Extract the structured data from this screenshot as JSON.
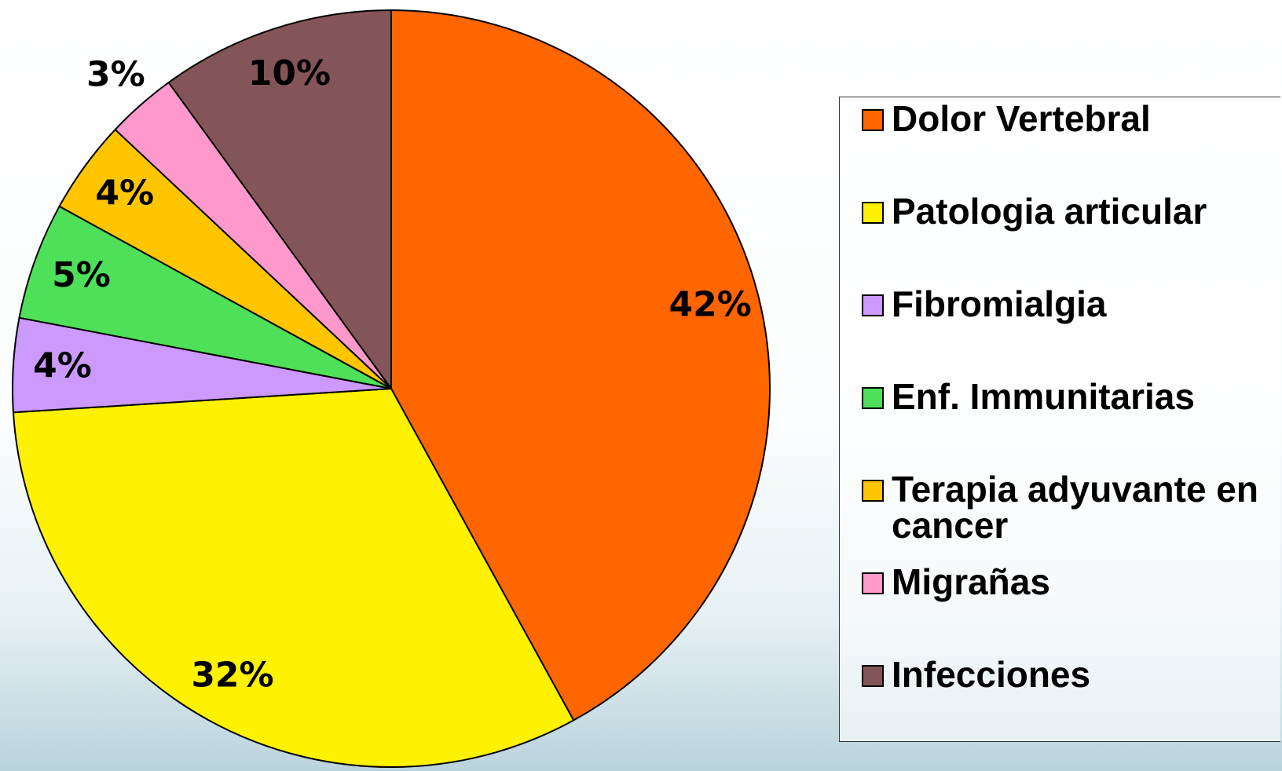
{
  "chart_data": {
    "type": "pie",
    "categories": [
      "Dolor Vertebral",
      "Patologia articular",
      "Fibromialgia",
      "Enf. Immunitarias",
      "Terapia adyuvante en cancer",
      "Migrañas",
      "Infecciones"
    ],
    "values": [
      42,
      32,
      4,
      5,
      4,
      3,
      10
    ],
    "value_labels": [
      "42%",
      "32%",
      "4%",
      "5%",
      "4%",
      "3%",
      "10%"
    ],
    "colors": [
      "#ff6600",
      "#fff200",
      "#cc99ff",
      "#4fe05a",
      "#ffc600",
      "#ff99cc",
      "#845558"
    ],
    "legend": "right"
  }
}
